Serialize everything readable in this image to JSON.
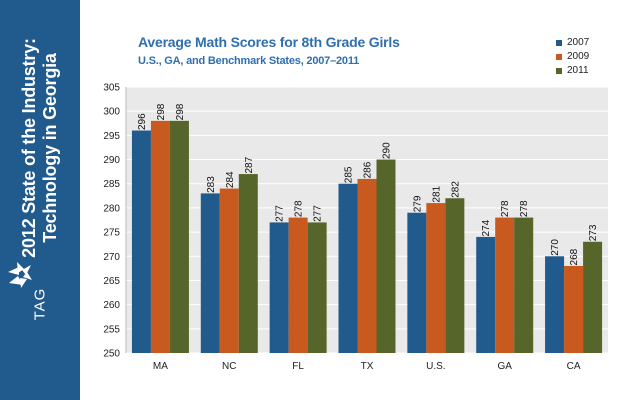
{
  "sidebar": {
    "title_line1": "2012 State of the Industry:",
    "title_line2": "Technology in Georgia",
    "logo_text": "TAG",
    "background": "#215a8c"
  },
  "chart_data": {
    "type": "bar",
    "title": "Average Math Scores for 8th Grade Girls",
    "subtitle": "U.S., GA, and Benchmark States, 2007–2011",
    "categories": [
      "MA",
      "NC",
      "FL",
      "TX",
      "U.S.",
      "GA",
      "CA"
    ],
    "series": [
      {
        "name": "2007",
        "color": "#215a8c",
        "values": [
          296,
          283,
          277,
          285,
          279,
          274,
          270
        ]
      },
      {
        "name": "2009",
        "color": "#c85a20",
        "values": [
          298,
          284,
          278,
          286,
          281,
          278,
          268
        ]
      },
      {
        "name": "2011",
        "color": "#56652a",
        "values": [
          298,
          287,
          277,
          290,
          282,
          278,
          273
        ]
      }
    ],
    "ylim": [
      250,
      305
    ],
    "yticks": [
      250,
      255,
      260,
      265,
      270,
      275,
      280,
      285,
      290,
      295,
      300,
      305
    ],
    "xlabel": "",
    "ylabel": "",
    "grid": true,
    "legend_position": "top-right"
  }
}
